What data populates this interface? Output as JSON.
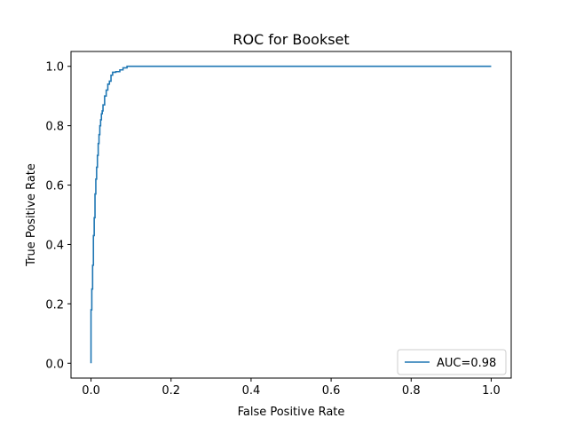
{
  "chart_data": {
    "type": "line",
    "title": "ROC for Bookset",
    "xlabel": "False Positive Rate",
    "ylabel": "True Positive Rate",
    "xlim": [
      -0.05,
      1.05
    ],
    "ylim": [
      -0.05,
      1.05
    ],
    "xticks": [
      0.0,
      0.2,
      0.4,
      0.6,
      0.8,
      1.0
    ],
    "yticks": [
      0.0,
      0.2,
      0.4,
      0.6,
      0.8,
      1.0
    ],
    "xtick_labels": [
      "0.0",
      "0.2",
      "0.4",
      "0.6",
      "0.8",
      "1.0"
    ],
    "ytick_labels": [
      "0.0",
      "0.2",
      "0.4",
      "0.6",
      "0.8",
      "1.0"
    ],
    "grid": false,
    "legend_position": "lower-right",
    "series": [
      {
        "name": "AUC=0.98",
        "color": "#1f77b4",
        "x": [
          0.0,
          0.0,
          0.002,
          0.002,
          0.004,
          0.004,
          0.006,
          0.006,
          0.008,
          0.008,
          0.01,
          0.01,
          0.012,
          0.012,
          0.014,
          0.014,
          0.016,
          0.016,
          0.018,
          0.018,
          0.02,
          0.02,
          0.022,
          0.022,
          0.024,
          0.024,
          0.026,
          0.026,
          0.028,
          0.028,
          0.03,
          0.03,
          0.034,
          0.034,
          0.038,
          0.038,
          0.042,
          0.042,
          0.046,
          0.046,
          0.05,
          0.05,
          0.054,
          0.054,
          0.062,
          0.062,
          0.072,
          0.072,
          0.08,
          0.08,
          0.09,
          0.09,
          1.0
        ],
        "y": [
          0.0,
          0.18,
          0.18,
          0.25,
          0.25,
          0.33,
          0.33,
          0.43,
          0.43,
          0.49,
          0.49,
          0.57,
          0.57,
          0.62,
          0.62,
          0.66,
          0.66,
          0.7,
          0.7,
          0.74,
          0.74,
          0.77,
          0.77,
          0.8,
          0.8,
          0.82,
          0.82,
          0.84,
          0.84,
          0.85,
          0.85,
          0.87,
          0.87,
          0.9,
          0.9,
          0.92,
          0.92,
          0.94,
          0.94,
          0.95,
          0.95,
          0.97,
          0.97,
          0.98,
          0.98,
          0.982,
          0.982,
          0.988,
          0.988,
          0.995,
          0.995,
          1.0,
          1.0
        ]
      }
    ]
  }
}
